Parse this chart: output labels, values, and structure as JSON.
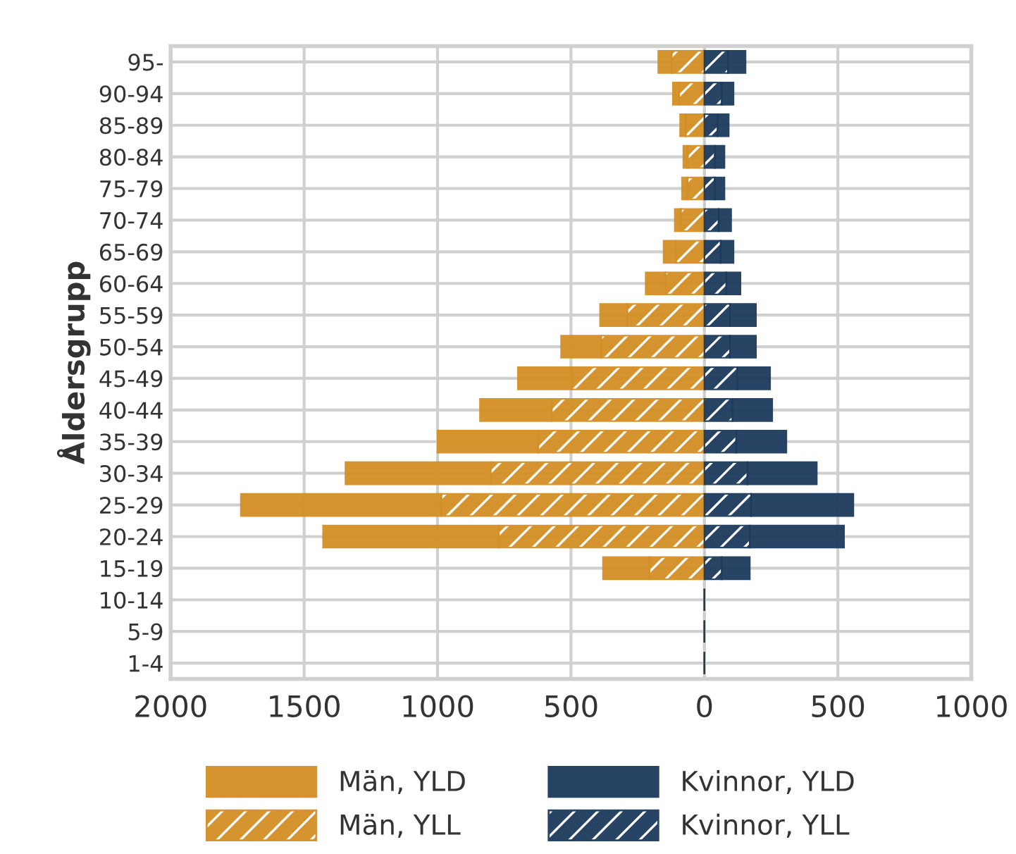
{
  "chart_data": {
    "type": "bar",
    "orientation": "horizontal",
    "stacked": true,
    "ylabel": "Åldersgrupp",
    "categories": [
      "95-",
      "90-94",
      "85-89",
      "80-84",
      "75-79",
      "70-74",
      "65-69",
      "60-64",
      "55-59",
      "50-54",
      "45-49",
      "40-44",
      "35-39",
      "30-34",
      "25-29",
      "20-24",
      "15-19",
      "10-14",
      "5-9",
      "1-4"
    ],
    "series": [
      {
        "name": "Män, YLL",
        "color": "#d38f24",
        "values": [
          -123,
          -95,
          -70,
          -62,
          -63,
          -88,
          -106,
          -146,
          -289,
          -387,
          -496,
          -572,
          -623,
          -801,
          -986,
          -771,
          -206,
          0,
          0,
          0
        ]
      },
      {
        "name": "Män, YLD",
        "color": "#d38f24",
        "values": [
          -50,
          -23,
          -21,
          -17,
          -21,
          -23,
          -47,
          -74,
          -102,
          -150,
          -203,
          -269,
          -377,
          -544,
          -751,
          -658,
          -174,
          0,
          0,
          0
        ]
      },
      {
        "name": "Kvinnor, YLL",
        "color": "#1d3a5c",
        "values": [
          88,
          65,
          49,
          39,
          39,
          53,
          61,
          82,
          96,
          96,
          123,
          105,
          119,
          161,
          175,
          170,
          65,
          0,
          0,
          0
        ]
      },
      {
        "name": "Kvinnor, YLD",
        "color": "#1d3a5c",
        "values": [
          66,
          44,
          42,
          36,
          36,
          47,
          48,
          53,
          97,
          97,
          123,
          149,
          188,
          260,
          383,
          353,
          105,
          0,
          0,
          0
        ]
      }
    ],
    "xlim": [
      -2000,
      1000
    ],
    "xticks": [
      {
        "value": -2000,
        "label": "2000"
      },
      {
        "value": -1500,
        "label": "1500"
      },
      {
        "value": -1000,
        "label": "1000"
      },
      {
        "value": -500,
        "label": "500"
      },
      0,
      500,
      1000
    ],
    "ref_lines": [
      {
        "axis": "x",
        "value": 0,
        "color": "#c8c8c8",
        "line_style": "dotted"
      }
    ],
    "grid": true,
    "legend": "bottom"
  }
}
